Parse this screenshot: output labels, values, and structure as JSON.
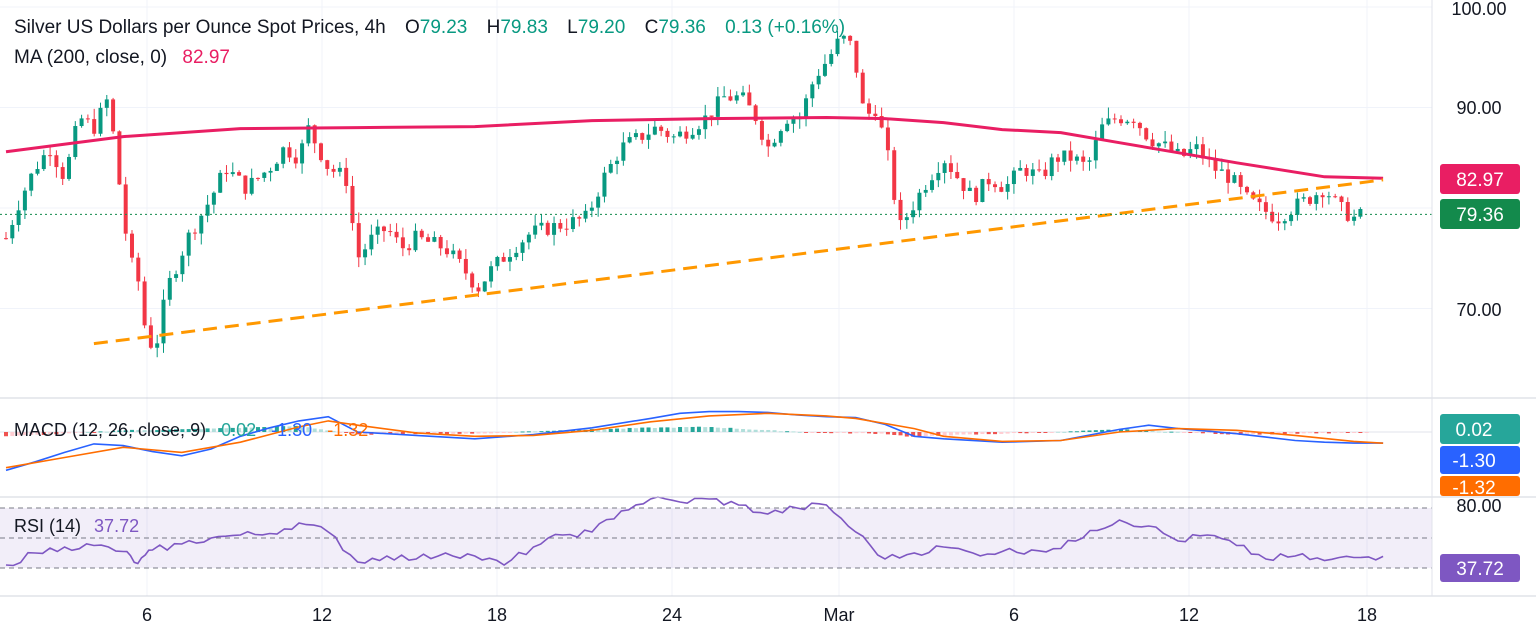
{
  "header": {
    "symbol": "Silver US Dollars per Ounce Spot Prices, 4h",
    "open_label": "O",
    "open": "79.23",
    "high_label": "H",
    "high": "79.83",
    "low_label": "L",
    "low": "79.20",
    "close_label": "C",
    "close": "79.36",
    "change": "0.13 (+0.16%)",
    "ma_label": "MA (200, close, 0)",
    "ma_value": "82.97"
  },
  "macd_legend": {
    "label": "MACD (12, 26, close, 9)",
    "hist": "0.02",
    "macd": "-1.30",
    "signal": "-1.32"
  },
  "rsi_legend": {
    "label": "RSI (14)",
    "value": "37.72"
  },
  "price_axis": {
    "ticks": [
      "100.00",
      "90.00",
      "70.00"
    ]
  },
  "rsi_axis": {
    "ticks": [
      "80.00"
    ]
  },
  "badges": {
    "ma": "82.97",
    "last": "79.36",
    "hist": "0.02",
    "macd": "-1.30",
    "signal": "-1.32",
    "rsi": "37.72"
  },
  "colors": {
    "up": "#089981",
    "down": "#f23645",
    "ma": "#e91e63",
    "trend": "#ff9800",
    "macd": "#2962ff",
    "signal": "#ff6d00",
    "rsi": "#7e57c2",
    "hist_up": "#26a69a",
    "hist_down": "#ef5350"
  },
  "chart_data": [
    {
      "type": "candlestick",
      "title": "Silver US Dollars per Ounce Spot Prices, 4h",
      "x_tick_labels": [
        "6",
        "12",
        "18",
        "24",
        "Mar",
        "6",
        "12",
        "18"
      ],
      "y_range": [
        62,
        101
      ],
      "y_ticks": [
        100,
        90,
        70
      ],
      "last_price": 79.36,
      "overlays": [
        {
          "name": "MA (200, close, 0)",
          "x": [
            0,
            4,
            8,
            12,
            16,
            20,
            24,
            28,
            30,
            32,
            34,
            36,
            38,
            40,
            42,
            45,
            47
          ],
          "y": [
            85.6,
            87.1,
            87.9,
            88.0,
            88.1,
            88.7,
            88.9,
            89.0,
            88.9,
            88.5,
            87.8,
            87.5,
            86.5,
            85.5,
            84.5,
            83.1,
            82.97
          ]
        },
        {
          "name": "ascending trend line",
          "x": [
            3,
            47
          ],
          "y": [
            66.5,
            82.8
          ]
        },
        {
          "name": "dotted last-price line",
          "x": [
            0,
            47.5
          ],
          "y": [
            79.36,
            79.36
          ]
        }
      ],
      "path": [
        [
          0,
          77
        ],
        [
          0.5,
          81
        ],
        [
          1,
          84
        ],
        [
          1.5,
          86
        ],
        [
          2,
          83
        ],
        [
          2.5,
          89
        ],
        [
          3,
          88
        ],
        [
          3.5,
          91
        ],
        [
          3.8,
          84
        ],
        [
          4.2,
          75
        ],
        [
          4.5,
          73
        ],
        [
          4.8,
          67
        ],
        [
          5.1,
          66
        ],
        [
          5.5,
          72
        ],
        [
          6.2,
          77
        ],
        [
          7,
          81
        ],
        [
          7.5,
          84
        ],
        [
          8.2,
          82
        ],
        [
          9,
          84
        ],
        [
          9.5,
          86
        ],
        [
          10,
          85
        ],
        [
          10.3,
          88
        ],
        [
          11,
          84
        ],
        [
          11.6,
          83
        ],
        [
          12,
          75
        ],
        [
          12.5,
          77
        ],
        [
          13,
          78
        ],
        [
          13.5,
          76
        ],
        [
          14,
          77
        ],
        [
          15,
          76
        ],
        [
          15.6,
          74
        ],
        [
          16.1,
          72
        ],
        [
          16.6,
          74
        ],
        [
          17.3,
          76
        ],
        [
          17.9,
          77.5
        ],
        [
          18.5,
          78
        ],
        [
          19.2,
          78.5
        ],
        [
          19.8,
          79
        ],
        [
          20.4,
          83
        ],
        [
          21,
          86
        ],
        [
          21.6,
          87
        ],
        [
          22.2,
          88
        ],
        [
          22.8,
          87
        ],
        [
          23.4,
          88
        ],
        [
          23.9,
          89
        ],
        [
          24.5,
          91
        ],
        [
          25.1,
          91
        ],
        [
          25.6,
          89
        ],
        [
          26,
          86
        ],
        [
          26.6,
          89
        ],
        [
          27.1,
          89
        ],
        [
          27.6,
          93
        ],
        [
          28.1,
          95
        ],
        [
          28.5,
          97
        ],
        [
          28.9,
          96
        ],
        [
          29.3,
          89
        ],
        [
          29.7,
          90
        ],
        [
          30.1,
          85
        ],
        [
          30.5,
          78
        ],
        [
          30.9,
          80
        ],
        [
          31.5,
          83
        ],
        [
          32,
          85
        ],
        [
          32.5,
          83
        ],
        [
          33,
          81
        ],
        [
          33.6,
          83
        ],
        [
          34.1,
          82
        ],
        [
          34.7,
          84
        ],
        [
          35.3,
          83
        ],
        [
          35.8,
          85
        ],
        [
          36.4,
          85
        ],
        [
          36.9,
          84
        ],
        [
          37.4,
          88
        ],
        [
          37.9,
          89
        ],
        [
          38.5,
          89
        ],
        [
          39,
          87
        ],
        [
          39.6,
          86
        ],
        [
          40.1,
          85
        ],
        [
          40.6,
          86
        ],
        [
          41.2,
          84
        ],
        [
          41.8,
          83
        ],
        [
          42.3,
          81
        ],
        [
          42.8,
          80
        ],
        [
          43.4,
          79
        ],
        [
          43.9,
          80
        ],
        [
          44.5,
          81
        ],
        [
          45,
          82
        ],
        [
          45.5,
          80
        ],
        [
          46,
          79
        ],
        [
          46.4,
          79.4
        ]
      ]
    },
    {
      "type": "line",
      "title": "MACD (12, 26, close, 9)",
      "series": [
        {
          "name": "MACD",
          "x": [
            0,
            1,
            2,
            3,
            4,
            5,
            6,
            7,
            8,
            9,
            10,
            11,
            12,
            14,
            16,
            18,
            20,
            22,
            23,
            24,
            25,
            26,
            27,
            28,
            29,
            30,
            31,
            32,
            34,
            36,
            38,
            39,
            40,
            41,
            42,
            43,
            44,
            45,
            46,
            47
          ],
          "y": [
            -4.5,
            -3.5,
            -2.4,
            -1.4,
            -1.6,
            -2.3,
            -2.8,
            -2.0,
            -0.5,
            0.5,
            1.3,
            1.8,
            0.0,
            -0.4,
            -0.8,
            -0.3,
            0.5,
            1.6,
            2.2,
            2.4,
            2.4,
            2.3,
            2.0,
            1.8,
            1.7,
            0.9,
            -0.5,
            -0.8,
            -1.2,
            -1.0,
            0.3,
            0.8,
            0.4,
            0.1,
            -0.2,
            -0.6,
            -1.0,
            -1.2,
            -1.3,
            -1.3
          ]
        },
        {
          "name": "Signal",
          "x": [
            0,
            2,
            4,
            6,
            8,
            10,
            11,
            12,
            14,
            16,
            18,
            20,
            22,
            24,
            26,
            28,
            29,
            30,
            31,
            32,
            34,
            36,
            38,
            40,
            42,
            44,
            46,
            47
          ],
          "y": [
            -4.2,
            -3.0,
            -1.8,
            -2.4,
            -1.2,
            0.6,
            1.3,
            0.8,
            -0.1,
            -0.5,
            -0.4,
            0.2,
            1.2,
            1.9,
            2.2,
            1.9,
            1.6,
            1.0,
            0.4,
            -0.5,
            -1.1,
            -1.0,
            0.0,
            0.4,
            0.2,
            -0.4,
            -1.1,
            -1.32
          ]
        },
        {
          "name": "Histogram",
          "x": [
            0,
            2,
            4,
            6,
            8,
            10,
            12,
            14,
            16,
            18,
            20,
            22,
            24,
            26,
            28,
            30,
            31,
            32,
            34,
            36,
            38,
            40,
            42,
            44,
            46,
            47
          ],
          "y": [
            -0.5,
            -0.2,
            0.2,
            0.3,
            0.5,
            0.7,
            -0.3,
            -0.2,
            -0.2,
            0.1,
            0.3,
            0.5,
            0.6,
            0.2,
            -0.1,
            -0.2,
            -0.6,
            -0.4,
            -0.2,
            0.0,
            0.3,
            0.0,
            -0.3,
            -0.2,
            -0.1,
            0.02
          ]
        }
      ],
      "y_range": [
        -5.5,
        3.5
      ]
    },
    {
      "type": "line",
      "title": "RSI (14)",
      "series": [
        {
          "name": "RSI",
          "x": [
            0,
            1,
            2,
            3,
            4,
            4.5,
            5,
            6,
            7,
            8,
            9,
            10,
            11,
            12,
            13,
            14,
            15,
            16,
            17,
            18,
            19,
            20,
            21,
            22,
            23,
            24,
            25,
            26,
            27,
            28,
            29,
            30,
            31,
            32,
            33,
            34,
            35,
            36,
            37,
            38,
            39,
            40,
            41,
            42,
            43,
            44,
            45,
            46,
            47
          ],
          "y": [
            32,
            40,
            44,
            45,
            41,
            33,
            42,
            46,
            50,
            52,
            53,
            60,
            54,
            34,
            38,
            36,
            40,
            38,
            32,
            44,
            52,
            54,
            68,
            76,
            74,
            76,
            72,
            66,
            70,
            72,
            54,
            36,
            40,
            44,
            40,
            41,
            42,
            43,
            55,
            62,
            58,
            48,
            52,
            45,
            36,
            38,
            35,
            37,
            37.72
          ]
        }
      ],
      "y_range": [
        26,
        84
      ],
      "y_ticks": [
        80
      ],
      "levels": [
        30,
        50,
        70
      ]
    }
  ]
}
